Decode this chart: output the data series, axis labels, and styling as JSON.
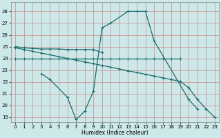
{
  "xlabel": "Humidex (Indice chaleur)",
  "bg_color": "#cce8e8",
  "grid_color": "#cc8888",
  "line_color": "#1a6b6b",
  "ylim_min": 18.6,
  "ylim_max": 28.8,
  "yticks": [
    19,
    20,
    21,
    22,
    23,
    24,
    25,
    26,
    27,
    28
  ],
  "xticks": [
    0,
    1,
    2,
    3,
    4,
    5,
    6,
    7,
    8,
    9,
    10,
    11,
    12,
    13,
    14,
    15,
    16,
    17,
    18,
    19,
    20,
    21,
    22,
    23
  ],
  "s1_x": [
    0,
    1,
    2,
    3,
    4,
    5,
    6,
    7,
    8,
    9,
    10
  ],
  "s1_y": [
    25.0,
    24.9,
    24.85,
    24.8,
    24.8,
    24.8,
    24.75,
    24.75,
    24.75,
    24.75,
    24.5
  ],
  "s2_x": [
    0,
    1,
    2,
    3,
    4,
    5,
    6,
    7,
    8,
    9,
    10,
    11,
    12,
    13,
    14,
    15,
    16,
    17,
    18,
    19
  ],
  "s2_y": [
    24.0,
    24.0,
    24.0,
    24.0,
    24.0,
    24.0,
    24.0,
    24.0,
    24.0,
    24.0,
    24.0,
    24.0,
    24.0,
    24.0,
    24.0,
    24.0,
    24.0,
    24.0,
    24.0,
    24.0
  ],
  "s3_x": [
    0,
    1,
    2,
    3,
    4,
    5,
    6,
    7,
    8,
    9,
    10,
    11,
    12,
    13,
    14,
    15,
    16,
    17,
    18,
    19,
    20,
    21,
    22,
    23
  ],
  "s3_y": [
    24.9,
    24.75,
    24.6,
    24.45,
    24.3,
    24.15,
    24.0,
    23.85,
    23.7,
    23.55,
    23.4,
    23.25,
    23.1,
    22.95,
    22.8,
    22.65,
    22.5,
    22.35,
    22.2,
    22.05,
    21.5,
    20.5,
    19.7,
    19.0
  ],
  "s4_x": [
    3,
    4,
    6,
    7,
    8,
    9,
    10,
    11,
    13,
    14,
    15,
    16,
    20,
    21
  ],
  "s4_y": [
    22.7,
    22.2,
    20.7,
    18.8,
    19.5,
    21.2,
    26.6,
    27.0,
    28.0,
    28.0,
    28.0,
    25.5,
    20.5,
    19.7
  ]
}
